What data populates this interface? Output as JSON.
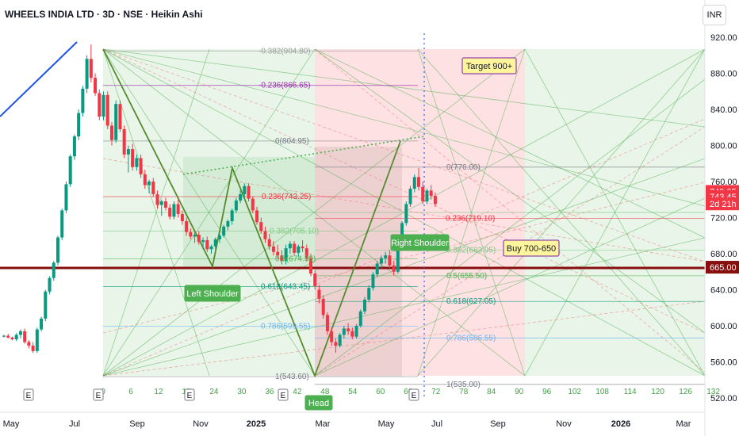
{
  "header": {
    "title": "WHEELS INDIA LTD · 3D · NSE · Heikin Ashi",
    "currency": "INR"
  },
  "chart_data": {
    "type": "candlestick",
    "symbol": "WHEELS INDIA LTD",
    "timeframe": "3D",
    "exchange": "NSE",
    "style": "Heikin Ashi",
    "currency": "INR",
    "y_axis": {
      "min": 520,
      "max": 920,
      "ticks": [
        "920.00",
        "880.00",
        "840.00",
        "800.00",
        "760.00",
        "720.00",
        "680.00",
        "640.00",
        "600.00",
        "560.00",
        "520.00"
      ]
    },
    "x_axis": {
      "labels": [
        "May",
        "Jul",
        "Sep",
        "Nov",
        "2025",
        "Mar",
        "May",
        "Jul",
        "Sep",
        "Nov",
        "2026",
        "Mar"
      ]
    },
    "bar_counts": [
      "0",
      "6",
      "12",
      "18",
      "24",
      "30",
      "36",
      "42",
      "48",
      "54",
      "60",
      "66",
      "72",
      "78",
      "84",
      "90",
      "96",
      "102",
      "108",
      "114",
      "120",
      "126",
      "132"
    ],
    "price_labels": [
      {
        "text": "749.05",
        "value": 749.05,
        "color": "#f23645"
      },
      {
        "text": "743.45",
        "value": 743.45,
        "color": "#f23645"
      },
      {
        "text": "2d 21h",
        "value": 735.2,
        "color": "#f23645"
      },
      {
        "text": "665.00",
        "value": 665.0,
        "color": "#880e0e"
      }
    ],
    "fib_left": [
      {
        "label": "-0.382(904.80)",
        "value": 904.8,
        "color": "#9c9c9c"
      },
      {
        "label": "-0.236(866.65)",
        "value": 866.65,
        "color": "#9c27b0"
      },
      {
        "label": "0(804.95)",
        "value": 804.95,
        "color": "#787b86"
      },
      {
        "label": "0.236(743.25)",
        "value": 743.25,
        "color": "#f23645"
      },
      {
        "label": "0.382(705.10)",
        "value": 705.1,
        "color": "#81c784"
      },
      {
        "label": "0.5(674.30)",
        "value": 674.3,
        "color": "#4caf50"
      },
      {
        "label": "0.618(643.45)",
        "value": 643.45,
        "color": "#089981"
      },
      {
        "label": "0.786(599.55)",
        "value": 599.55,
        "color": "#64b5f6"
      },
      {
        "label": "1(543.60)",
        "value": 543.6,
        "color": "#787b86"
      }
    ],
    "fib_right": [
      {
        "label": "0(776.00)",
        "value": 776.0,
        "color": "#787b86"
      },
      {
        "label": "0.236(719.10)",
        "value": 719.1,
        "color": "#f23645"
      },
      {
        "label": "0.382(683.95)",
        "value": 683.95,
        "color": "#81c784"
      },
      {
        "label": "0.5(655.50)",
        "value": 655.5,
        "color": "#4caf50"
      },
      {
        "label": "0.618(627.05)",
        "value": 627.05,
        "color": "#089981"
      },
      {
        "label": "0.786(586.55)",
        "value": 586.55,
        "color": "#64b5f6"
      },
      {
        "label": "1(535.00)",
        "value": 535.0,
        "color": "#787b86"
      }
    ],
    "annotations": [
      {
        "text": "Target 900+",
        "style": "yellow"
      },
      {
        "text": "Buy 700-650",
        "style": "yellow"
      },
      {
        "text": "Left Shoulder",
        "style": "green"
      },
      {
        "text": "Right Shoulder",
        "style": "green"
      },
      {
        "text": "Head",
        "style": "green"
      }
    ],
    "horizontal_levels": [
      {
        "value": 665.0,
        "color": "#880e0e"
      }
    ],
    "earnings_markers": [
      "E",
      "E",
      "E",
      "E",
      "E"
    ],
    "candles": [
      [
        588,
        590,
        587,
        589
      ],
      [
        589,
        591,
        586,
        587
      ],
      [
        587,
        588,
        584,
        585
      ],
      [
        585,
        592,
        583,
        590
      ],
      [
        590,
        596,
        586,
        594
      ],
      [
        594,
        597,
        580,
        582
      ],
      [
        582,
        584,
        575,
        578
      ],
      [
        578,
        582,
        570,
        572
      ],
      [
        572,
        598,
        570,
        596
      ],
      [
        596,
        610,
        594,
        608
      ],
      [
        608,
        640,
        605,
        638
      ],
      [
        638,
        655,
        635,
        653
      ],
      [
        653,
        672,
        650,
        670
      ],
      [
        670,
        700,
        667,
        698
      ],
      [
        698,
        730,
        695,
        728
      ],
      [
        728,
        760,
        725,
        757
      ],
      [
        757,
        790,
        754,
        788
      ],
      [
        788,
        812,
        784,
        810
      ],
      [
        810,
        840,
        806,
        836
      ],
      [
        836,
        866,
        832,
        863
      ],
      [
        863,
        900,
        858,
        896
      ],
      [
        896,
        912,
        870,
        875
      ],
      [
        875,
        880,
        855,
        858
      ],
      [
        858,
        862,
        828,
        832
      ],
      [
        832,
        860,
        828,
        856
      ],
      [
        856,
        860,
        818,
        822
      ],
      [
        822,
        826,
        800,
        806
      ],
      [
        806,
        850,
        803,
        846
      ],
      [
        846,
        850,
        815,
        818
      ],
      [
        818,
        822,
        786,
        790
      ],
      [
        790,
        800,
        770,
        796
      ],
      [
        796,
        802,
        772,
        776
      ],
      [
        776,
        790,
        772,
        786
      ],
      [
        786,
        790,
        764,
        768
      ],
      [
        768,
        773,
        752,
        756
      ],
      [
        756,
        762,
        747,
        760
      ],
      [
        760,
        764,
        743,
        746
      ],
      [
        746,
        750,
        730,
        734
      ],
      [
        734,
        740,
        722,
        738
      ],
      [
        738,
        742,
        728,
        731
      ],
      [
        731,
        735,
        718,
        721
      ],
      [
        721,
        738,
        718,
        735
      ],
      [
        735,
        740,
        720,
        724
      ],
      [
        724,
        728,
        712,
        716
      ],
      [
        716,
        720,
        700,
        704
      ],
      [
        704,
        708,
        696,
        699
      ],
      [
        699,
        704,
        692,
        701
      ],
      [
        701,
        705,
        690,
        693
      ],
      [
        693,
        698,
        685,
        695
      ],
      [
        695,
        699,
        682,
        685
      ],
      [
        685,
        690,
        680,
        688
      ],
      [
        688,
        698,
        685,
        696
      ],
      [
        696,
        703,
        692,
        700
      ],
      [
        700,
        712,
        698,
        710
      ],
      [
        710,
        718,
        706,
        716
      ],
      [
        716,
        730,
        712,
        728
      ],
      [
        728,
        742,
        725,
        739
      ],
      [
        739,
        750,
        736,
        746
      ],
      [
        746,
        758,
        742,
        755
      ],
      [
        755,
        758,
        738,
        741
      ],
      [
        741,
        744,
        725,
        728
      ],
      [
        728,
        732,
        712,
        715
      ],
      [
        715,
        720,
        702,
        705
      ],
      [
        705,
        710,
        692,
        696
      ],
      [
        696,
        702,
        684,
        688
      ],
      [
        688,
        694,
        678,
        682
      ],
      [
        682,
        690,
        674,
        678
      ],
      [
        678,
        684,
        668,
        672
      ],
      [
        672,
        690,
        668,
        686
      ],
      [
        686,
        694,
        680,
        691
      ],
      [
        691,
        694,
        678,
        681
      ],
      [
        681,
        690,
        676,
        688
      ],
      [
        688,
        695,
        682,
        686
      ],
      [
        686,
        690,
        672,
        675
      ],
      [
        675,
        680,
        655,
        658
      ],
      [
        658,
        662,
        640,
        644
      ],
      [
        640,
        645,
        625,
        630
      ],
      [
        630,
        634,
        608,
        612
      ],
      [
        612,
        615,
        590,
        594
      ],
      [
        594,
        598,
        578,
        582
      ],
      [
        582,
        586,
        570,
        578
      ],
      [
        578,
        592,
        576,
        590
      ],
      [
        590,
        600,
        586,
        597
      ],
      [
        597,
        603,
        590,
        594
      ],
      [
        594,
        598,
        585,
        588
      ],
      [
        588,
        602,
        586,
        600
      ],
      [
        600,
        618,
        598,
        616
      ],
      [
        616,
        632,
        613,
        629
      ],
      [
        629,
        645,
        626,
        642
      ],
      [
        642,
        660,
        639,
        657
      ],
      [
        657,
        672,
        654,
        669
      ],
      [
        669,
        678,
        664,
        675
      ],
      [
        675,
        682,
        669,
        678
      ],
      [
        678,
        684,
        664,
        667
      ],
      [
        667,
        672,
        656,
        660
      ],
      [
        660,
        690,
        658,
        688
      ],
      [
        688,
        716,
        686,
        714
      ],
      [
        714,
        738,
        711,
        735
      ],
      [
        735,
        755,
        732,
        752
      ],
      [
        752,
        768,
        748,
        765
      ],
      [
        765,
        775,
        750,
        754
      ],
      [
        754,
        760,
        735,
        738
      ],
      [
        738,
        752,
        735,
        750
      ],
      [
        750,
        756,
        740,
        744
      ],
      [
        744,
        748,
        732,
        735
      ]
    ]
  }
}
